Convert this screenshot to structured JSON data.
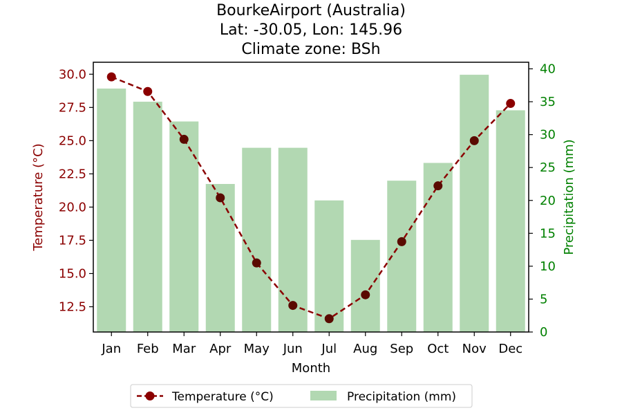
{
  "chart_data": {
    "type": "bar+line",
    "title_lines": [
      "BourkeAirport (Australia)",
      "Lat: -30.05, Lon: 145.96",
      "Climate zone: BSh"
    ],
    "categories": [
      "Jan",
      "Feb",
      "Mar",
      "Apr",
      "May",
      "Jun",
      "Jul",
      "Aug",
      "Sep",
      "Oct",
      "Nov",
      "Dec"
    ],
    "xlabel": "Month",
    "series": [
      {
        "name": "Temperature (°C)",
        "kind": "line",
        "axis": "left",
        "values": [
          29.8,
          28.7,
          25.1,
          20.7,
          15.8,
          12.6,
          11.6,
          13.4,
          17.4,
          21.6,
          25.0,
          27.8
        ]
      },
      {
        "name": "Precipitation (mm)",
        "kind": "bar",
        "axis": "right",
        "values": [
          37.0,
          35.0,
          32.0,
          22.5,
          28.0,
          28.0,
          20.0,
          14.0,
          23.0,
          25.7,
          39.1,
          33.7
        ]
      }
    ],
    "left_axis": {
      "label": "Temperature (°C)",
      "ylim": [
        10.6,
        30.9
      ],
      "ticks": [
        "12.5",
        "15.0",
        "17.5",
        "20.0",
        "22.5",
        "25.0",
        "27.5",
        "30.0"
      ],
      "color": "#8b0000"
    },
    "right_axis": {
      "label": "Precipitation (mm)",
      "ylim": [
        0,
        41
      ],
      "ticks": [
        "0",
        "5",
        "10",
        "15",
        "20",
        "25",
        "30",
        "35",
        "40"
      ],
      "color": "#008000"
    },
    "colors": {
      "line": "#8b0000",
      "bar": "#b2d8b2",
      "marker_overlap": "#5a0a00"
    },
    "legend_position": "bottom-center"
  }
}
